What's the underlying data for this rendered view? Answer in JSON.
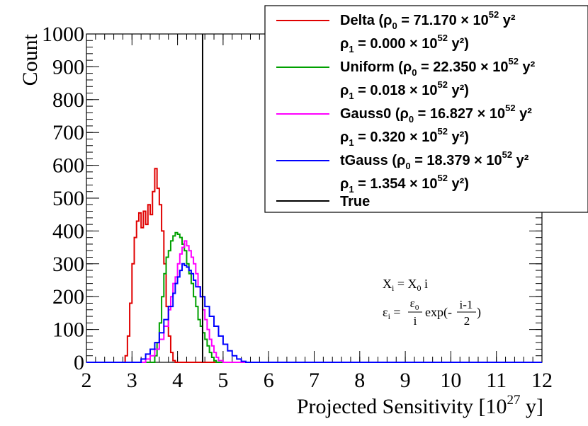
{
  "chart_data": {
    "type": "histogram",
    "xlabel_main": "Projected Sensitivity [10",
    "xlabel_exp": "27",
    "xlabel_tail": " y]",
    "ylabel": "Count",
    "xlim": [
      2,
      12
    ],
    "ylim": [
      0,
      1000
    ],
    "xticks": [
      "2",
      "3",
      "4",
      "5",
      "6",
      "7",
      "8",
      "9",
      "10",
      "11",
      "12"
    ],
    "yticks": [
      "0",
      "100",
      "200",
      "300",
      "400",
      "500",
      "600",
      "700",
      "800",
      "900",
      "1000"
    ],
    "true_value": 4.55,
    "series": [
      {
        "name": "Delta",
        "color": "#e00000",
        "line1_pre": "Delta (ρ",
        "sub1": "0",
        "line1_mid": " = 71.170 × 10",
        "sup1": "52",
        "line1_post": " y²",
        "line2_pre": "ρ",
        "sub2": "1",
        "line2_mid": " = 0.000 × 10",
        "sup2": "52",
        "line2_post": " y²)",
        "points": [
          [
            2.8,
            0
          ],
          [
            2.85,
            20
          ],
          [
            2.9,
            80
          ],
          [
            2.95,
            180
          ],
          [
            3.0,
            300
          ],
          [
            3.05,
            380
          ],
          [
            3.1,
            430
          ],
          [
            3.15,
            455
          ],
          [
            3.2,
            410
          ],
          [
            3.25,
            460
          ],
          [
            3.3,
            420
          ],
          [
            3.35,
            480
          ],
          [
            3.4,
            450
          ],
          [
            3.45,
            520
          ],
          [
            3.5,
            590
          ],
          [
            3.55,
            530
          ],
          [
            3.6,
            480
          ],
          [
            3.65,
            400
          ],
          [
            3.7,
            300
          ],
          [
            3.75,
            170
          ],
          [
            3.8,
            80
          ],
          [
            3.85,
            30
          ],
          [
            3.9,
            5
          ],
          [
            3.95,
            0
          ]
        ]
      },
      {
        "name": "Uniform",
        "color": "#00a000",
        "line1_pre": "Uniform (ρ",
        "sub1": "0",
        "line1_mid": " = 22.350 × 10",
        "sup1": "52",
        "line1_post": " y²",
        "line2_pre": "ρ",
        "sub2": "1",
        "line2_mid": " = 0.018 × 10",
        "sup2": "52",
        "line2_post": " y²)",
        "points": [
          [
            3.4,
            0
          ],
          [
            3.5,
            20
          ],
          [
            3.55,
            60
          ],
          [
            3.6,
            120
          ],
          [
            3.65,
            200
          ],
          [
            3.7,
            270
          ],
          [
            3.75,
            320
          ],
          [
            3.8,
            340
          ],
          [
            3.85,
            370
          ],
          [
            3.9,
            385
          ],
          [
            3.95,
            395
          ],
          [
            4.0,
            390
          ],
          [
            4.05,
            380
          ],
          [
            4.1,
            360
          ],
          [
            4.15,
            340
          ],
          [
            4.2,
            300
          ],
          [
            4.25,
            270
          ],
          [
            4.3,
            240
          ],
          [
            4.35,
            200
          ],
          [
            4.4,
            170
          ],
          [
            4.45,
            130
          ],
          [
            4.5,
            110
          ],
          [
            4.55,
            90
          ],
          [
            4.6,
            70
          ],
          [
            4.65,
            50
          ],
          [
            4.7,
            30
          ],
          [
            4.75,
            15
          ],
          [
            4.8,
            5
          ],
          [
            4.85,
            0
          ]
        ]
      },
      {
        "name": "Gauss0",
        "color": "#ff00ff",
        "line1_pre": "Gauss0 (ρ",
        "sub1": "0",
        "line1_mid": " = 16.827 × 10",
        "sup1": "52",
        "line1_post": " y²",
        "line2_pre": "ρ",
        "sub2": "1",
        "line2_mid": " = 0.320 × 10",
        "sup2": "52",
        "line2_post": " y²)",
        "points": [
          [
            3.2,
            0
          ],
          [
            3.3,
            10
          ],
          [
            3.4,
            20
          ],
          [
            3.5,
            40
          ],
          [
            3.6,
            70
          ],
          [
            3.7,
            110
          ],
          [
            3.8,
            160
          ],
          [
            3.85,
            200
          ],
          [
            3.9,
            240
          ],
          [
            3.95,
            260
          ],
          [
            4.0,
            300
          ],
          [
            4.05,
            330
          ],
          [
            4.1,
            350
          ],
          [
            4.15,
            370
          ],
          [
            4.2,
            355
          ],
          [
            4.25,
            340
          ],
          [
            4.3,
            320
          ],
          [
            4.35,
            300
          ],
          [
            4.4,
            270
          ],
          [
            4.45,
            230
          ],
          [
            4.5,
            200
          ],
          [
            4.55,
            160
          ],
          [
            4.6,
            130
          ],
          [
            4.65,
            100
          ],
          [
            4.7,
            70
          ],
          [
            4.75,
            50
          ],
          [
            4.8,
            30
          ],
          [
            4.85,
            15
          ],
          [
            4.9,
            5
          ],
          [
            5.0,
            0
          ]
        ]
      },
      {
        "name": "tGauss",
        "color": "#0000ff",
        "line1_pre": "tGauss (ρ",
        "sub1": "0",
        "line1_mid": " = 18.379 × 10",
        "sup1": "52",
        "line1_post": " y²",
        "line2_pre": "ρ",
        "sub2": "1",
        "line2_mid": " = 1.354 × 10",
        "sup2": "52",
        "line2_post": " y²)",
        "points": [
          [
            3.1,
            0
          ],
          [
            3.2,
            10
          ],
          [
            3.3,
            25
          ],
          [
            3.4,
            40
          ],
          [
            3.5,
            60
          ],
          [
            3.6,
            90
          ],
          [
            3.7,
            130
          ],
          [
            3.8,
            170
          ],
          [
            3.9,
            210
          ],
          [
            3.95,
            240
          ],
          [
            4.0,
            260
          ],
          [
            4.05,
            280
          ],
          [
            4.1,
            300
          ],
          [
            4.15,
            295
          ],
          [
            4.2,
            290
          ],
          [
            4.25,
            280
          ],
          [
            4.3,
            270
          ],
          [
            4.35,
            250
          ],
          [
            4.4,
            230
          ],
          [
            4.5,
            200
          ],
          [
            4.6,
            170
          ],
          [
            4.7,
            140
          ],
          [
            4.8,
            110
          ],
          [
            4.9,
            80
          ],
          [
            5.0,
            55
          ],
          [
            5.1,
            35
          ],
          [
            5.2,
            20
          ],
          [
            5.3,
            10
          ],
          [
            5.4,
            3
          ],
          [
            5.5,
            0
          ]
        ]
      }
    ],
    "legend_true": "True",
    "annotation": {
      "line1_pre": "X",
      "line1_sub": "i",
      "line1_mid": " = X",
      "line1_sub2": "0",
      "line1_post": " i",
      "line2_pre": "ε",
      "line2_sub": "i",
      "line2_eq": " =",
      "frac1_num": "ε",
      "frac1_num_sub": "0",
      "frac1_den": "i",
      "exp_text": "exp(-",
      "frac2_num": "i-1",
      "frac2_den": "2",
      "close": ")"
    }
  }
}
